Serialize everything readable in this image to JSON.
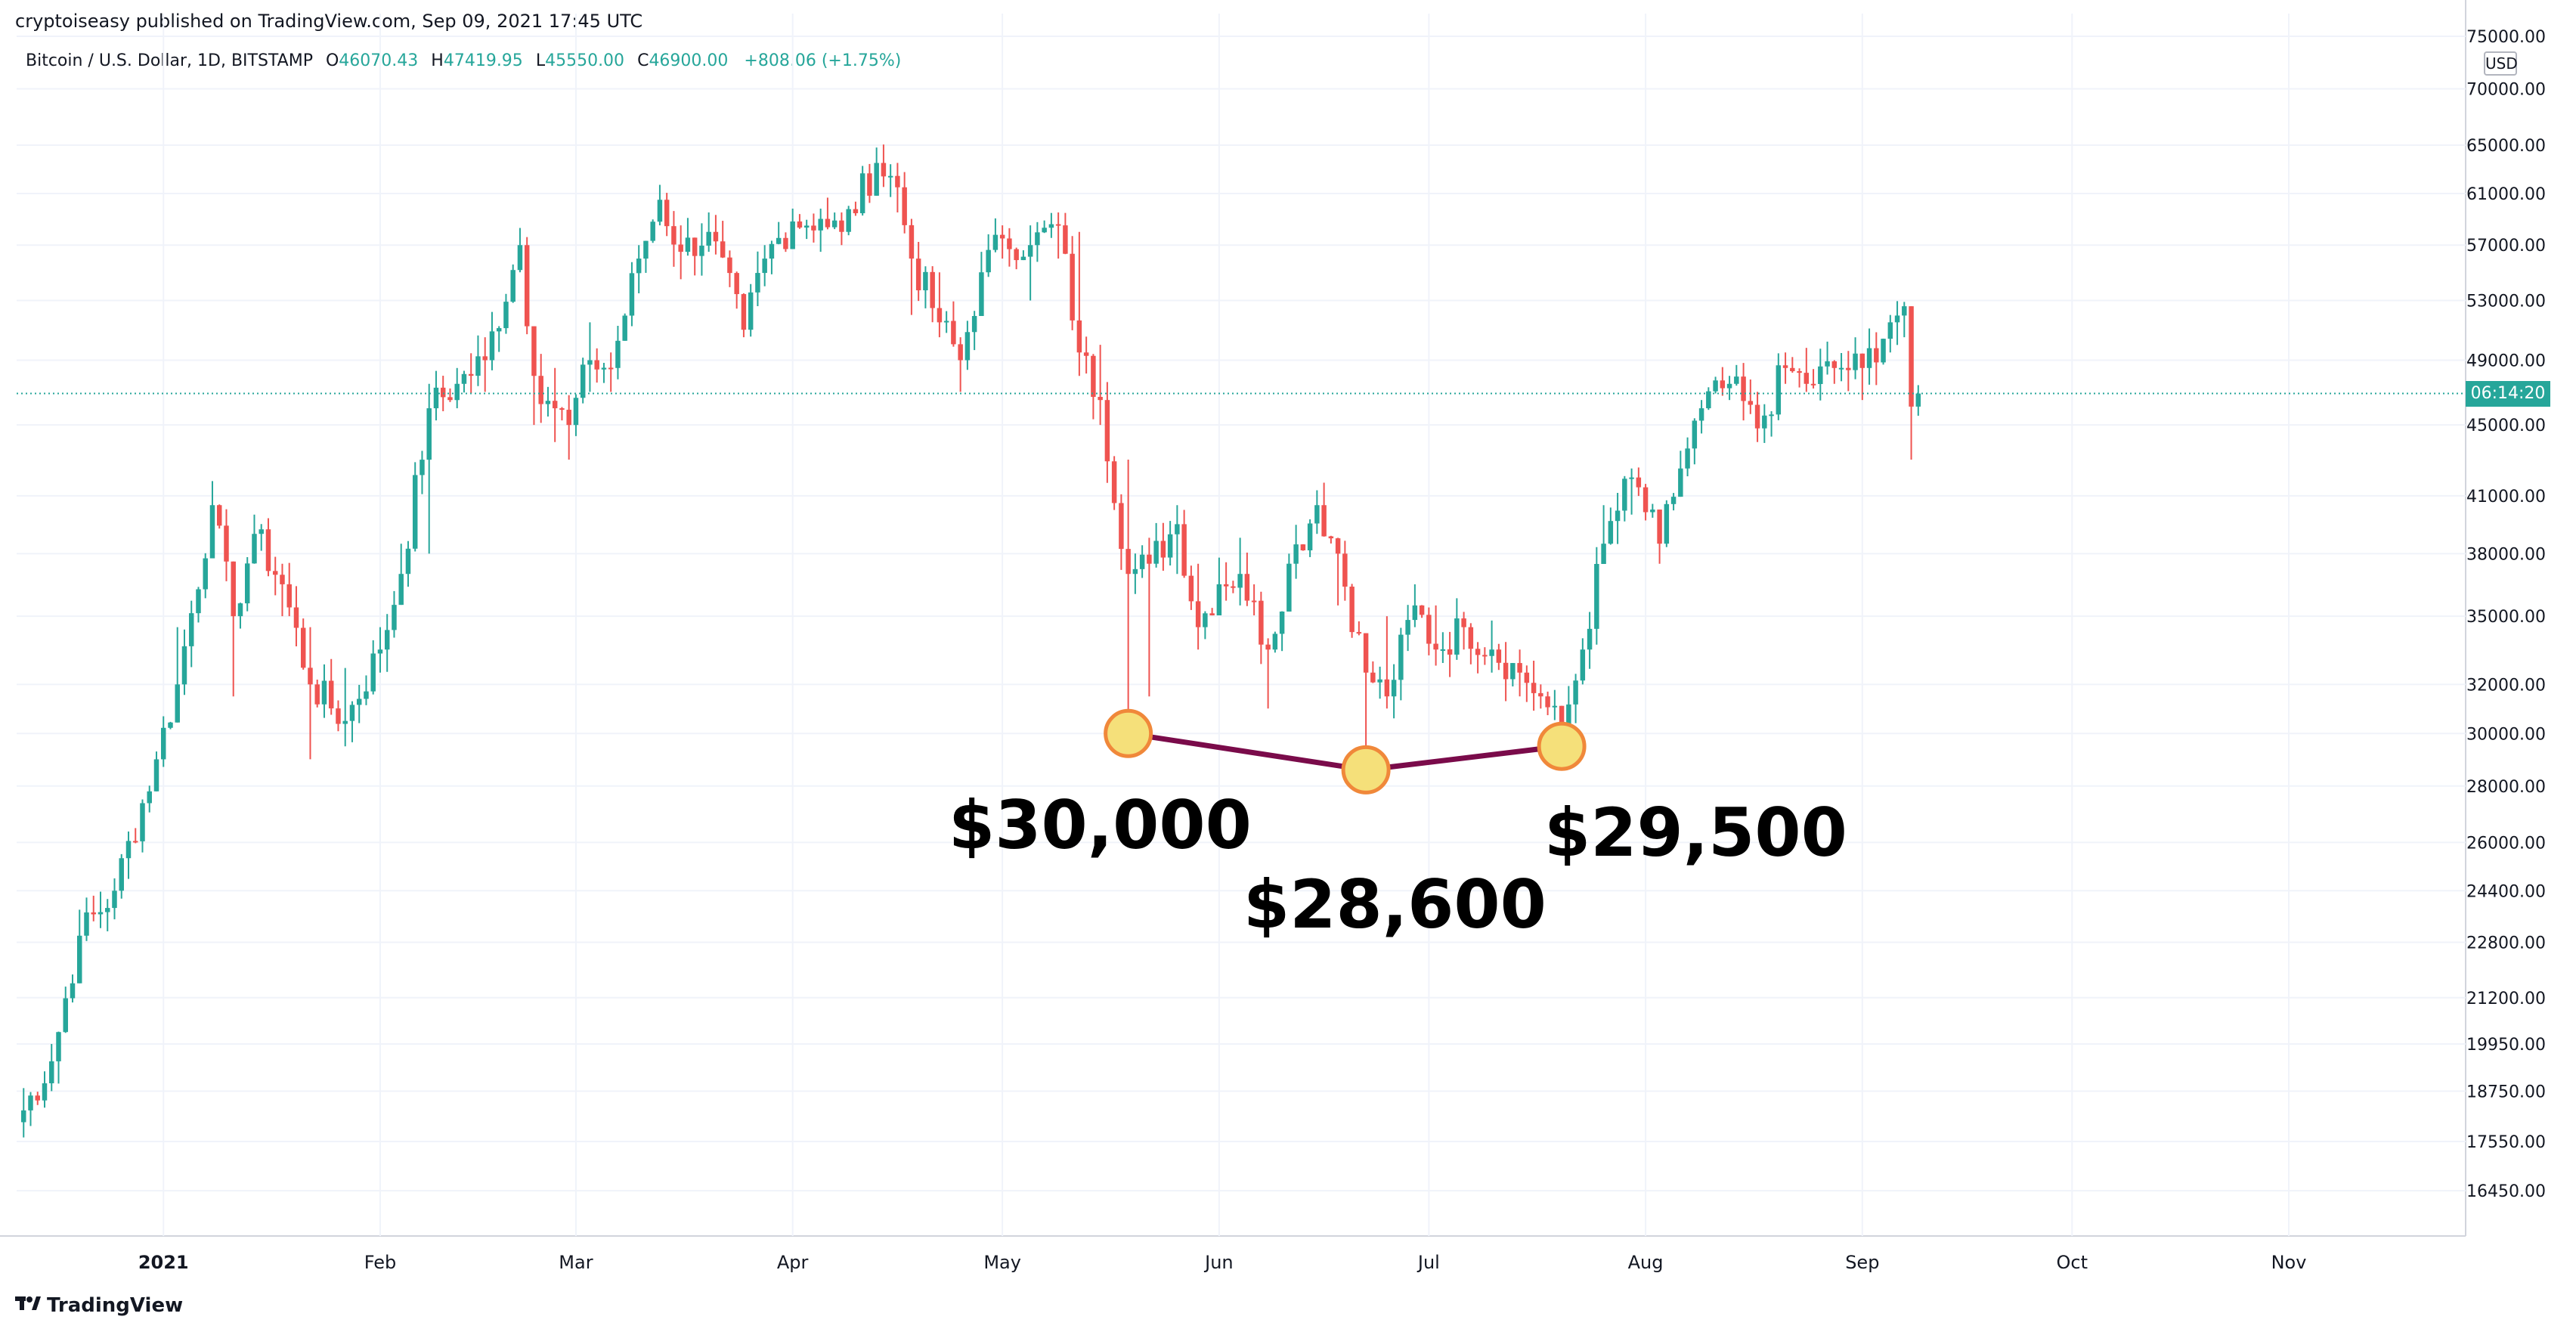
{
  "header": {
    "published": "cryptoiseasy published on TradingView.com, Sep 09, 2021 17:45 UTC",
    "symbol": "Bitcoin / U.S. Dollar, 1D, BITSTAMP",
    "open_label": "O",
    "open": "46070.43",
    "high_label": "H",
    "high": "47419.95",
    "low_label": "L",
    "low": "45550.00",
    "close_label": "C",
    "close": "46900.00",
    "change": "+808.06 (+1.75%)"
  },
  "axis": {
    "currency": "USD",
    "countdown": "06:14:20"
  },
  "footer": {
    "brand": "TradingView"
  },
  "annotations": {
    "labels": [
      "$30,000",
      "$28,600",
      "$29,500"
    ],
    "line_color": "#7a0b4a",
    "marker_color": "#f5e07a"
  },
  "colors": {
    "up": "#26a69a",
    "down": "#ef5350",
    "last_price_line": "#26a69a"
  },
  "chart_data": {
    "type": "candlestick",
    "title": "Bitcoin / U.S. Dollar, 1D, BITSTAMP",
    "y_scale": "log",
    "ylim": [
      15500,
      75000
    ],
    "y_ticks": [
      75000,
      70000,
      65000,
      61000,
      57000,
      53000,
      49000,
      45000,
      41000,
      38000,
      35000,
      32000,
      30000,
      28000,
      26000,
      24400,
      22800,
      21200,
      19950,
      18750,
      17550,
      16450
    ],
    "y_tick_labels": [
      "75000.00",
      "70000.00",
      "65000.00",
      "61000.00",
      "57000.00",
      "53000.00",
      "49000.00",
      "45000.00",
      "41000.00",
      "38000.00",
      "35000.00",
      "32000.00",
      "30000.00",
      "28000.00",
      "26000.00",
      "24400.00",
      "22800.00",
      "21200.00",
      "19950.00",
      "18750.00",
      "17550.00",
      "16450.00"
    ],
    "x_ticks": [
      "2021",
      "Feb",
      "Mar",
      "Apr",
      "May",
      "Jun",
      "Jul",
      "Aug",
      "Sep",
      "Oct",
      "Nov"
    ],
    "x_tick_dates": [
      "2021-01-01",
      "2021-02-01",
      "2021-03-01",
      "2021-04-01",
      "2021-05-01",
      "2021-06-01",
      "2021-07-01",
      "2021-08-01",
      "2021-09-01",
      "2021-10-01",
      "2021-11-01"
    ],
    "x_range": [
      "2020-12-11",
      "2021-11-25"
    ],
    "last_price": 46900,
    "annotation_points": [
      {
        "date": "2021-05-19",
        "price": 30000,
        "label": "$30,000"
      },
      {
        "date": "2021-06-22",
        "price": 28600,
        "label": "$28,600"
      },
      {
        "date": "2021-07-20",
        "price": 29500,
        "label": "$29,500"
      }
    ],
    "waypoints": [
      [
        "2020-12-11",
        18000,
        17550,
        18200
      ],
      [
        "2020-12-16",
        19500,
        18750,
        19950
      ],
      [
        "2020-12-20",
        23000,
        22800,
        23800
      ],
      [
        "2020-12-25",
        24400,
        23500,
        24800
      ],
      [
        "2020-12-31",
        29000,
        28000,
        29300
      ],
      [
        "2021-01-03",
        32000,
        30500,
        34500
      ],
      [
        "2021-01-08",
        40500,
        38000,
        41800
      ],
      [
        "2021-01-11",
        35000,
        31500,
        37500
      ],
      [
        "2021-01-14",
        39000,
        37500,
        40000
      ],
      [
        "2021-01-18",
        36500,
        35000,
        37500
      ],
      [
        "2021-01-22",
        32000,
        29000,
        34500
      ],
      [
        "2021-01-27",
        30500,
        29500,
        32700
      ],
      [
        "2021-02-01",
        33500,
        32500,
        34500
      ],
      [
        "2021-02-04",
        37000,
        36000,
        38500
      ],
      [
        "2021-02-08",
        46000,
        38000,
        47500
      ],
      [
        "2021-02-12",
        47500,
        46000,
        48500
      ],
      [
        "2021-02-16",
        49000,
        47000,
        50500
      ],
      [
        "2021-02-21",
        57000,
        55000,
        58300
      ],
      [
        "2021-02-23",
        48000,
        45000,
        51000
      ],
      [
        "2021-02-26",
        46000,
        44000,
        48500
      ],
      [
        "2021-02-28",
        45000,
        43000,
        46800
      ],
      [
        "2021-03-03",
        49000,
        47000,
        51500
      ],
      [
        "2021-03-06",
        48500,
        47000,
        49500
      ],
      [
        "2021-03-10",
        56000,
        53500,
        57000
      ],
      [
        "2021-03-13",
        60500,
        58500,
        61700
      ],
      [
        "2021-03-16",
        56500,
        54500,
        58500
      ],
      [
        "2021-03-20",
        58000,
        56500,
        59500
      ],
      [
        "2021-03-25",
        51000,
        50500,
        53500
      ],
      [
        "2021-03-28",
        56000,
        54000,
        57000
      ],
      [
        "2021-04-01",
        58800,
        57000,
        59800
      ],
      [
        "2021-04-05",
        59000,
        56500,
        59800
      ],
      [
        "2021-04-08",
        58000,
        57000,
        59500
      ],
      [
        "2021-04-13",
        63500,
        61000,
        64800
      ],
      [
        "2021-04-16",
        61500,
        59500,
        63500
      ],
      [
        "2021-04-18",
        56000,
        52000,
        59000
      ],
      [
        "2021-04-22",
        51500,
        50500,
        55000
      ],
      [
        "2021-04-25",
        49000,
        47000,
        50500
      ],
      [
        "2021-04-28",
        55000,
        53000,
        56500
      ],
      [
        "2021-05-01",
        57500,
        56000,
        58500
      ],
      [
        "2021-05-05",
        57000,
        53000,
        58500
      ],
      [
        "2021-05-09",
        58500,
        56000,
        59500
      ],
      [
        "2021-05-12",
        49500,
        48000,
        58000
      ],
      [
        "2021-05-15",
        46500,
        45000,
        50000
      ],
      [
        "2021-05-19",
        37000,
        30000,
        43000
      ],
      [
        "2021-05-22",
        37500,
        31500,
        38800
      ],
      [
        "2021-05-26",
        39500,
        37000,
        40500
      ],
      [
        "2021-05-29",
        34500,
        33500,
        37500
      ],
      [
        "2021-06-01",
        36500,
        35500,
        37800
      ],
      [
        "2021-06-04",
        37000,
        35500,
        38800
      ],
      [
        "2021-06-08",
        33500,
        31000,
        34000
      ],
      [
        "2021-06-11",
        37500,
        35500,
        38000
      ],
      [
        "2021-06-15",
        40500,
        39000,
        41300
      ],
      [
        "2021-06-18",
        38000,
        35500,
        38800
      ],
      [
        "2021-06-22",
        32500,
        28600,
        34000
      ],
      [
        "2021-06-25",
        31500,
        31000,
        35000
      ],
      [
        "2021-06-29",
        35500,
        34500,
        36500
      ],
      [
        "2021-07-02",
        33500,
        32800,
        35500
      ],
      [
        "2021-07-06",
        34500,
        33500,
        35200
      ],
      [
        "2021-07-10",
        33500,
        32500,
        34800
      ],
      [
        "2021-07-14",
        32500,
        31500,
        33500
      ],
      [
        "2021-07-17",
        31500,
        31000,
        32000
      ],
      [
        "2021-07-20",
        30000,
        29500,
        31000
      ],
      [
        "2021-07-23",
        33500,
        32000,
        34000
      ],
      [
        "2021-07-26",
        38500,
        37500,
        40500
      ],
      [
        "2021-07-30",
        42000,
        40000,
        42500
      ],
      [
        "2021-08-03",
        38500,
        37500,
        39500
      ],
      [
        "2021-08-06",
        42500,
        41000,
        43500
      ],
      [
        "2021-08-09",
        46000,
        44500,
        46500
      ],
      [
        "2021-08-13",
        47500,
        46500,
        48000
      ],
      [
        "2021-08-17",
        44800,
        44000,
        47000
      ],
      [
        "2021-08-21",
        48500,
        47500,
        49500
      ],
      [
        "2021-08-24",
        47500,
        47000,
        49800
      ],
      [
        "2021-08-28",
        48500,
        47500,
        49000
      ],
      [
        "2021-09-01",
        48500,
        46500,
        49000
      ],
      [
        "2021-09-05",
        51500,
        49500,
        52000
      ],
      [
        "2021-09-07",
        52600,
        50500,
        52900
      ],
      [
        "2021-09-08",
        46100,
        43000,
        52500
      ],
      [
        "2021-09-09",
        46900,
        45550,
        47420
      ]
    ]
  }
}
